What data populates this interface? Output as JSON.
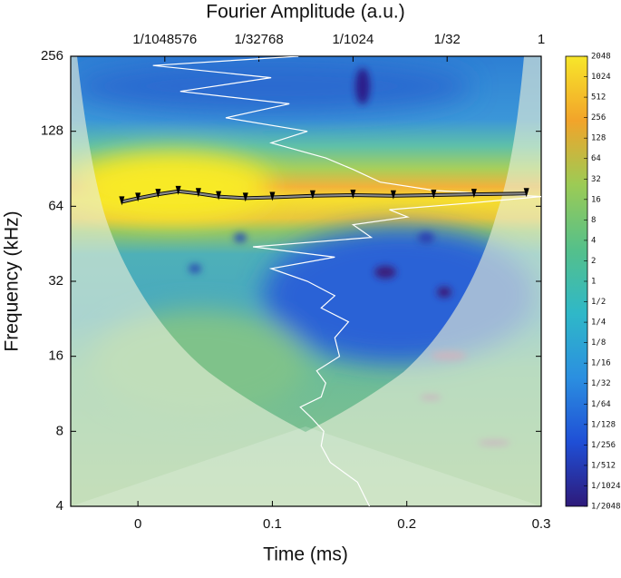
{
  "chart_data": {
    "type": "scalogram",
    "xlabel": "Time (ms)",
    "ylabel": "Frequency (kHz)",
    "x2label": "Fourier Amplitude (a.u.)",
    "xlim": [
      -0.05,
      0.3
    ],
    "xticks": [
      0,
      0.1,
      0.2,
      0.3
    ],
    "ylim": [
      4,
      256
    ],
    "yticks": [
      4,
      8,
      16,
      32,
      64,
      128,
      256
    ],
    "y_log_base": 2,
    "x2lim": [
      2.9802322387695312e-08,
      1
    ],
    "x2_log_base": 2,
    "x2ticks": [
      {
        "value": 9.5367431640625e-07,
        "label": "1/1048576"
      },
      {
        "value": 3.0517578125e-05,
        "label": "1/32768"
      },
      {
        "value": 0.0009765625,
        "label": "1/1024"
      },
      {
        "value": 0.03125,
        "label": "1/32"
      },
      1
    ],
    "colorbar": {
      "lim": [
        0.00048828125,
        2048
      ],
      "log_base": 2,
      "colors": [
        "#2e1a7a",
        "#1f4fd6",
        "#2b8fe0",
        "#2fb8c8",
        "#55c08a",
        "#9ccb55",
        "#f2a42a",
        "#f7e62a"
      ],
      "ticks": [
        2048,
        1024,
        512,
        256,
        128,
        64,
        32,
        16,
        8,
        4,
        2,
        1,
        {
          "value": 0.5,
          "label": "1/2"
        },
        {
          "value": 0.25,
          "label": "1/4"
        },
        {
          "value": 0.125,
          "label": "1/8"
        },
        {
          "value": 0.0625,
          "label": "1/16"
        },
        {
          "value": 0.03125,
          "label": "1/32"
        },
        {
          "value": 0.015625,
          "label": "1/64"
        },
        {
          "value": 0.0078125,
          "label": "1/128"
        },
        {
          "value": 0.00390625,
          "label": "1/256"
        },
        {
          "value": 0.001953125,
          "label": "1/512"
        },
        {
          "value": 0.0009765625,
          "label": "1/1024"
        },
        {
          "value": 0.00048828125,
          "label": "1/2048"
        }
      ]
    },
    "ridge": {
      "color": "#8a8a8a",
      "x": [
        -0.012,
        0,
        0.015,
        0.03,
        0.045,
        0.06,
        0.08,
        0.1,
        0.13,
        0.16,
        0.19,
        0.22,
        0.25,
        0.289
      ],
      "y": [
        66.7,
        69,
        71.5,
        73.5,
        72,
        70,
        69,
        69.5,
        70.5,
        71,
        70.5,
        71,
        71.5,
        72
      ]
    },
    "spectrum": {
      "color": "#ffffff",
      "axis": "x2",
      "x": [
        0.00179,
        0.00115,
        0.000422,
        0.000303,
        0.000333,
        0.000217,
        0.00014,
        0.000303,
        0.000358,
        0.000256,
        0.000593,
        0.000499,
        0.000826,
        0.000303,
        0.000499,
        0.000182,
        4.79e-05,
        0.000499,
        2.46e-05,
        0.00191,
        0.000977,
        0.00729,
        0.00372,
        0.0759,
        1,
        0.0199,
        0.00266,
        0.000977,
        0.000358,
        4.79e-05,
        0.000182,
        8.99e-06,
        9.37e-05,
        1.68e-06,
        4.79e-05,
        6.16e-07,
        0.000131
      ],
      "y": [
        4,
        5,
        6,
        7,
        8,
        9,
        10,
        11,
        12.5,
        14,
        16,
        19,
        22,
        25,
        28,
        32,
        36,
        40,
        44,
        48,
        54,
        58,
        62,
        66,
        70,
        74,
        80,
        90,
        100,
        115,
        128,
        145,
        165,
        185,
        210,
        235,
        256
      ]
    }
  }
}
